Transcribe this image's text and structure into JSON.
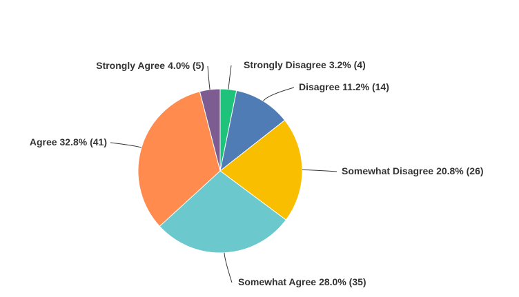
{
  "chart_data": {
    "type": "pie",
    "categories": [
      "Strongly Disagree",
      "Disagree",
      "Somewhat Disagree",
      "Somewhat Agree",
      "Agree",
      "Strongly Agree"
    ],
    "values": [
      3.2,
      11.2,
      20.8,
      28.0,
      32.8,
      4.0
    ],
    "value_labels": [
      "3.2% (4)",
      "11.2% (14)",
      "20.8% (26)",
      "28.0% (35)",
      "32.8% (41)",
      "4.0% (5)"
    ],
    "colors": [
      "#1fc27a",
      "#507cb6",
      "#f9be00",
      "#6bc8cd",
      "#ff8b4f",
      "#7d5c91"
    ]
  }
}
